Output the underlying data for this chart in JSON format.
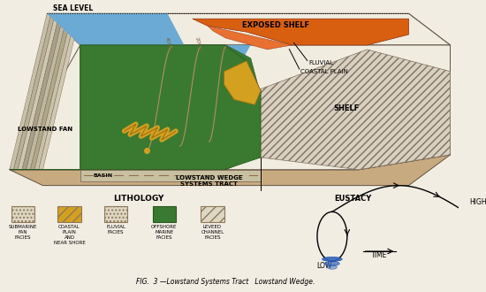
{
  "title": "FIG.  3 —Lowstand Systems Tract   Lowstand Wedge.",
  "background_color": "#f2ede3",
  "sea_level_label": "SEA LEVEL",
  "exposed_shelf_label": "EXPOSED SHELF",
  "fluvial_label": "FLUVIAL",
  "coastal_plain_label": "COASTAL PLAIN",
  "shelf_label": "SHELF",
  "lowstand_fan_label": "LOWSTAND FAN",
  "basin_label": "BASIN",
  "lowstand_wedge_label": "LOWSTAND WEDGE\nSYSTEMS TRACT",
  "eustacy_label": "EUSTACY",
  "high_label": "HIGH",
  "low_label": "LOW",
  "time_label": "TIME",
  "lithology_label": "LITHOLOGY",
  "colors": {
    "sea_blue": "#6aaad4",
    "green_facies": "#3a7a30",
    "orange_fluvial": "#d85f10",
    "yellow_coastal": "#d4a020",
    "shelf_white": "#f0ece0",
    "shelf_hatch_bg": "#ddd8c8",
    "basin_tan": "#c8aa80",
    "side_tan": "#b8a888",
    "strata_light": "#d0c8b0",
    "strata_dark": "#b0a888",
    "contour_line": "#b09060",
    "bg": "#f2ede3"
  }
}
